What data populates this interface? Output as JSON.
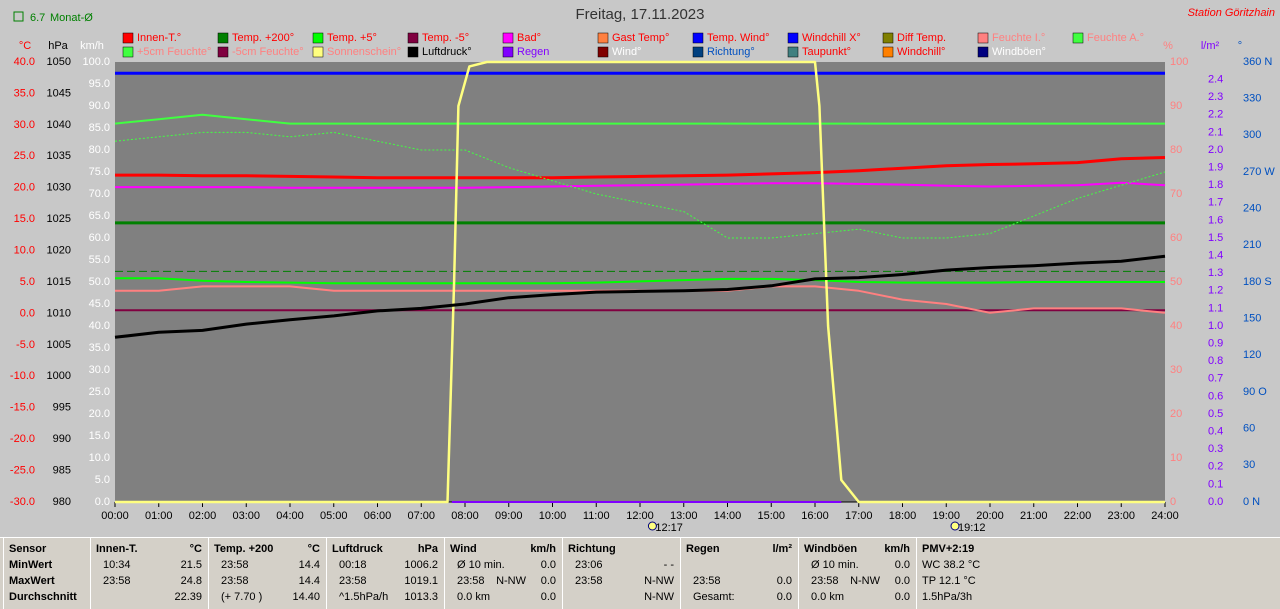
{
  "chart_data": {
    "type": "line",
    "title": "Freitag, 17.11.2023",
    "subtitle": "Station Göritzhain",
    "monthly_avg": {
      "value": 6.7,
      "label": "Monat-Ø",
      "color": "#008000",
      "axis": "°C"
    },
    "xlim": [
      0,
      24
    ],
    "xticks": [
      {
        "value": 0,
        "label": "00:00"
      },
      {
        "value": 1,
        "label": "01:00"
      },
      {
        "value": 2,
        "label": "02:00"
      },
      {
        "value": 3,
        "label": "03:00"
      },
      {
        "value": 4,
        "label": "04:00"
      },
      {
        "value": 5,
        "label": "05:00"
      },
      {
        "value": 6,
        "label": "06:00"
      },
      {
        "value": 7,
        "label": "07:00"
      },
      {
        "value": 8,
        "label": "08:00"
      },
      {
        "value": 9,
        "label": "09:00"
      },
      {
        "value": 10,
        "label": "10:00"
      },
      {
        "value": 11,
        "label": "11:00"
      },
      {
        "value": 12,
        "label": "12:00"
      },
      {
        "value": 13,
        "label": "13:00"
      },
      {
        "value": 14,
        "label": "14:00"
      },
      {
        "value": 15,
        "label": "15:00"
      },
      {
        "value": 16,
        "label": "16:00"
      },
      {
        "value": 17,
        "label": "17:00"
      },
      {
        "value": 18,
        "label": "18:00"
      },
      {
        "value": 19,
        "label": "19:00"
      },
      {
        "value": 20,
        "label": "20:00"
      },
      {
        "value": 21,
        "label": "21:00"
      },
      {
        "value": 22,
        "label": "22:00"
      },
      {
        "value": 23,
        "label": "23:00"
      },
      {
        "value": 24,
        "label": "24:00"
      }
    ],
    "markers": [
      "12:17",
      "19:12"
    ],
    "axes": [
      {
        "unit": "°C",
        "side": "left",
        "color": "#ff0000",
        "lim": [
          -30,
          40
        ],
        "ticks": [
          {
            "value": 40,
            "label": "40.0"
          },
          {
            "value": 35,
            "label": "35.0"
          },
          {
            "value": 30,
            "label": "30.0"
          },
          {
            "value": 25,
            "label": "25.0"
          },
          {
            "value": 20,
            "label": "20.0"
          },
          {
            "value": 15,
            "label": "15.0"
          },
          {
            "value": 10,
            "label": "10.0"
          },
          {
            "value": 5,
            "label": "5.0"
          },
          {
            "value": 0,
            "label": "0.0"
          },
          {
            "value": -5,
            "label": "-5.0"
          },
          {
            "value": -10,
            "label": "-10.0"
          },
          {
            "value": -15,
            "label": "-15.0"
          },
          {
            "value": -20,
            "label": "-20.0"
          },
          {
            "value": -25,
            "label": "-25.0"
          },
          {
            "value": -30,
            "label": "-30.0"
          }
        ]
      },
      {
        "unit": "hPa",
        "side": "left",
        "color": "#000000",
        "lim": [
          980,
          1050
        ],
        "ticks": [
          1050,
          1045,
          1040,
          1035,
          1030,
          1025,
          1020,
          1015,
          1010,
          1005,
          1000,
          995,
          990,
          985,
          980
        ]
      },
      {
        "unit": "km/h",
        "side": "left",
        "color": "#ffffff",
        "lim": [
          0,
          100
        ],
        "ticks": [
          {
            "value": 100,
            "label": "100.0"
          },
          {
            "value": 95,
            "label": "95.0"
          },
          {
            "value": 90,
            "label": "90.0"
          },
          {
            "value": 85,
            "label": "85.0"
          },
          {
            "value": 80,
            "label": "80.0"
          },
          {
            "value": 75,
            "label": "75.0"
          },
          {
            "value": 70,
            "label": "70.0"
          },
          {
            "value": 65,
            "label": "65.0"
          },
          {
            "value": 60,
            "label": "60.0"
          },
          {
            "value": 55,
            "label": "55.0"
          },
          {
            "value": 50,
            "label": "50.0"
          },
          {
            "value": 45,
            "label": "45.0"
          },
          {
            "value": 40,
            "label": "40.0"
          },
          {
            "value": 35,
            "label": "35.0"
          },
          {
            "value": 30,
            "label": "30.0"
          },
          {
            "value": 25,
            "label": "25.0"
          },
          {
            "value": 20,
            "label": "20.0"
          },
          {
            "value": 15,
            "label": "15.0"
          },
          {
            "value": 10,
            "label": "10.0"
          },
          {
            "value": 5,
            "label": "5.0"
          },
          {
            "value": 0,
            "label": "0.0"
          }
        ]
      },
      {
        "unit": "%",
        "side": "right",
        "color": "#ff8080",
        "lim": [
          0,
          100
        ],
        "ticks": [
          100,
          90,
          80,
          70,
          60,
          50,
          40,
          30,
          20,
          10,
          0
        ]
      },
      {
        "unit": "l/m²",
        "side": "right",
        "color": "#8000ff",
        "lim": [
          0,
          2.5
        ],
        "ticks": [
          2.4,
          2.3,
          2.2,
          2.1,
          {
            "value": 2,
            "label": "2.0"
          },
          1.9,
          1.8,
          1.7,
          1.6,
          1.5,
          1.4,
          1.3,
          1.2,
          1.1,
          {
            "value": 1,
            "label": "1.0"
          },
          0.9,
          0.8,
          0.7,
          0.6,
          0.5,
          0.4,
          0.3,
          0.2,
          0.1,
          {
            "value": 0,
            "label": "0.0"
          }
        ]
      },
      {
        "unit": "°",
        "side": "right",
        "color": "#0050c0",
        "lim": [
          0,
          360
        ],
        "ticks": [
          {
            "value": 360,
            "label": "360 N"
          },
          330,
          300,
          {
            "value": 270,
            "label": "270 W"
          },
          240,
          210,
          {
            "value": 180,
            "label": "180 S"
          },
          150,
          120,
          {
            "value": 90,
            "label": "90 O"
          },
          60,
          30,
          {
            "value": 0,
            "label": "0 N"
          }
        ]
      }
    ],
    "series": [
      {
        "name": "Innen-T.°",
        "color": "#ff0000",
        "axis": "°C",
        "width": 3,
        "x": [
          0,
          1,
          2,
          3,
          4,
          5,
          6,
          7,
          8,
          9,
          10,
          11,
          12,
          13,
          14,
          15,
          16,
          17,
          18,
          19,
          20,
          21,
          22,
          23,
          24
        ],
        "values": [
          22.0,
          22.0,
          21.9,
          21.9,
          21.8,
          21.7,
          21.6,
          21.6,
          21.6,
          21.6,
          21.6,
          21.7,
          21.8,
          21.9,
          22.0,
          22.2,
          22.4,
          22.7,
          23.1,
          23.5,
          23.7,
          23.8,
          24.0,
          24.6,
          24.8
        ]
      },
      {
        "name": "Temp. +200°",
        "color": "#008000",
        "axis": "°C",
        "width": 3,
        "x": [
          0,
          24
        ],
        "values": [
          14.4,
          14.4
        ]
      },
      {
        "name": "Temp. +5°",
        "color": "#00ff00",
        "axis": "°C",
        "width": 2,
        "x": [
          0,
          1,
          2,
          3,
          4,
          5,
          6,
          7,
          8,
          9,
          10,
          11,
          12,
          13,
          14,
          15,
          16,
          17,
          18,
          19,
          20,
          21,
          22,
          23,
          24
        ],
        "values": [
          5.6,
          5.6,
          5.2,
          5.0,
          4.9,
          4.8,
          4.8,
          4.8,
          4.8,
          4.8,
          4.8,
          4.9,
          5.1,
          5.3,
          5.5,
          5.5,
          5.3,
          5.0,
          4.9,
          4.9,
          4.9,
          5.0,
          5.0,
          5.0,
          5.0
        ]
      },
      {
        "name": "Temp. -5°",
        "color": "#800040",
        "axis": "°C",
        "width": 2,
        "x": [
          0,
          24
        ],
        "values": [
          0.5,
          0.5
        ]
      },
      {
        "name": "Bad°",
        "color": "#ff00ff",
        "axis": "°C",
        "width": 2,
        "x": [
          0,
          1,
          2,
          3,
          4,
          5,
          6,
          7,
          8,
          9,
          10,
          11,
          12,
          13,
          14,
          15,
          16,
          17,
          18,
          19,
          20,
          21,
          22,
          23,
          24
        ],
        "values": [
          20.1,
          20.1,
          20.1,
          20.1,
          20.0,
          20.0,
          20.0,
          20.0,
          20.0,
          20.1,
          20.2,
          20.3,
          20.4,
          20.5,
          20.6,
          20.7,
          20.7,
          20.6,
          20.5,
          20.3,
          20.2,
          20.3,
          20.4,
          20.8,
          20.4
        ]
      },
      {
        "name": "Gast Temp°",
        "color": "#ff8040",
        "axis": "°C"
      },
      {
        "name": "Temp. Wind°",
        "color": "#0000ff",
        "axis": "°C"
      },
      {
        "name": "Windchill X°",
        "color": "#0000ff",
        "axis": "°C",
        "width": 3,
        "x": [
          0,
          24
        ],
        "values": [
          38.2,
          38.2
        ]
      },
      {
        "name": "Diff Temp.",
        "color": "#808000",
        "axis": "°C"
      },
      {
        "name": "Feuchte I.°",
        "color": "#ff8080",
        "axis": "%",
        "width": 2,
        "x": [
          0,
          1,
          2,
          3,
          4,
          5,
          6,
          7,
          8,
          9,
          10,
          11,
          12,
          13,
          14,
          15,
          16,
          17,
          18,
          19,
          20,
          21,
          22,
          23,
          24
        ],
        "values": [
          48,
          48,
          49,
          49,
          49,
          48,
          48,
          48,
          48,
          48,
          48,
          48,
          48,
          48,
          48,
          49,
          49,
          48,
          46,
          45,
          43,
          44,
          44,
          44,
          43
        ]
      },
      {
        "name": "Feuchte A.°",
        "color": "#40ff40",
        "axis": "%",
        "width": 2,
        "x": [
          0,
          1,
          2,
          3,
          4,
          5,
          6,
          7,
          8,
          9,
          10,
          11,
          12,
          13,
          14,
          15,
          16,
          17,
          18,
          19,
          20,
          21,
          22,
          23,
          24
        ],
        "values": [
          86,
          87,
          88,
          87,
          86,
          86,
          86,
          86,
          86,
          86,
          86,
          86,
          86,
          86,
          86,
          86,
          86,
          86,
          86,
          86,
          86,
          86,
          86,
          86,
          86
        ]
      },
      {
        "name": "+5cm Feuchte°",
        "color": "#40ff40",
        "axis": "%",
        "width": 1,
        "style": "dotted",
        "x": [
          0,
          1,
          2,
          3,
          4,
          5,
          6,
          7,
          8,
          9,
          10,
          11,
          12,
          13,
          14,
          15,
          16,
          17,
          18,
          19,
          20,
          21,
          22,
          23,
          24
        ],
        "values": [
          82,
          83,
          84,
          84,
          83,
          84,
          82,
          80,
          80,
          76,
          73,
          70,
          68,
          66,
          60,
          60,
          61,
          62,
          60,
          60,
          61,
          65,
          69,
          72,
          75
        ]
      },
      {
        "name": "-5cm Feuchte°",
        "color": "#800040",
        "axis": "%"
      },
      {
        "name": "Sonnenschein°",
        "color": "#ffff80",
        "axis": "%",
        "width": 2.5,
        "x": [
          0,
          7.6,
          7.75,
          7.85,
          8.1,
          8.5,
          16.0,
          16.1,
          16.3,
          16.6,
          17,
          24
        ],
        "values": [
          0,
          0,
          50,
          90,
          99,
          100,
          100,
          90,
          40,
          5,
          0,
          0
        ]
      },
      {
        "name": "Luftdruck°",
        "color": "#000000",
        "axis": "hPa",
        "width": 3,
        "x": [
          0,
          1,
          2,
          3,
          4,
          5,
          6,
          7,
          8,
          9,
          10,
          11,
          12,
          13,
          14,
          15,
          16,
          17,
          18,
          19,
          20,
          21,
          22,
          23,
          24
        ],
        "values": [
          1006.2,
          1007.0,
          1007.3,
          1008.3,
          1009.0,
          1009.6,
          1010.4,
          1010.8,
          1011.5,
          1012.5,
          1013.0,
          1013.4,
          1013.5,
          1013.6,
          1013.8,
          1014.4,
          1015.5,
          1015.7,
          1016.2,
          1016.9,
          1017.3,
          1017.6,
          1018.0,
          1018.3,
          1019.1
        ]
      },
      {
        "name": "Regen",
        "color": "#8000ff",
        "axis": "l/m²",
        "width": 2,
        "x": [
          7.7,
          16.6
        ],
        "values": [
          0,
          0
        ]
      },
      {
        "name": "Wind°",
        "color": "#800000",
        "axis": "km/h"
      },
      {
        "name": "Richtung°",
        "color": "#004080",
        "axis": "°"
      },
      {
        "name": "Taupunkt°",
        "color": "#408080",
        "axis": "°C"
      },
      {
        "name": "Windchill°",
        "color": "#ff8000",
        "axis": "°C"
      },
      {
        "name": "Windböen°",
        "color": "#000080",
        "axis": "km/h"
      }
    ]
  },
  "table": {
    "sections": [
      {
        "header": "Sensor",
        "rows": [
          [
            "MinWert"
          ],
          [
            "MaxWert"
          ],
          [
            "Durchschnitt"
          ]
        ]
      },
      {
        "header": "Innen-T.",
        "unit": "°C",
        "rows": [
          [
            "10:34",
            "21.5"
          ],
          [
            "23:58",
            "24.8"
          ],
          [
            null,
            "22.39"
          ]
        ]
      },
      {
        "header": "Temp. +200",
        "unit": "°C",
        "rows": [
          [
            "23:58",
            "14.4"
          ],
          [
            "23:58",
            "14.4"
          ],
          [
            "(+ 7.70 )",
            "14.40"
          ]
        ]
      },
      {
        "header": "Luftdruck",
        "unit": "hPa",
        "rows": [
          [
            "00:18",
            "1006.2"
          ],
          [
            "23:58",
            "1019.1"
          ],
          [
            "^1.5hPa/h",
            "1013.3"
          ]
        ]
      },
      {
        "header": "Wind",
        "unit": "km/h",
        "rows": [
          [
            "Ø 10 min.",
            "0.0"
          ],
          [
            "23:58",
            "N-NW",
            "0.0"
          ],
          [
            "0.0 km",
            "0.0"
          ]
        ]
      },
      {
        "header": "Richtung",
        "rows": [
          [
            "23:06",
            "- -"
          ],
          [
            "23:58",
            "N-NW"
          ],
          [
            null,
            "N-NW"
          ]
        ]
      },
      {
        "header": "Regen",
        "unit": "l/m²",
        "rows": [
          [],
          [
            "23:58",
            "0.0"
          ],
          [
            "Gesamt:",
            "0.0"
          ]
        ]
      },
      {
        "header": "Windböen",
        "unit": "km/h",
        "rows": [
          [
            "Ø 10 min.",
            "0.0"
          ],
          [
            "23:58",
            "N-NW",
            "0.0"
          ],
          [
            "0.0 km",
            "0.0"
          ]
        ]
      },
      {
        "header": "PMV+2:19",
        "rows": [
          [
            "WC 38.2 °C"
          ],
          [
            "TP 12.1 °C"
          ],
          [
            "1.5hPa/3h"
          ]
        ]
      }
    ]
  }
}
